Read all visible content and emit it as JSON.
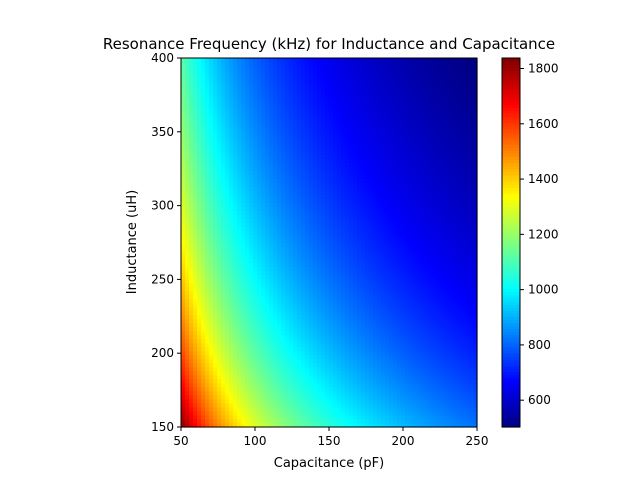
{
  "chart_data": {
    "type": "heatmap",
    "title": "Resonance Frequency (kHz) for Inductance and Capacitance",
    "xlabel": "Capacitance (pF)",
    "ylabel": "Inductance (uH)",
    "xlim": [
      50,
      250
    ],
    "ylim": [
      150,
      400
    ],
    "xticks": [
      50,
      100,
      150,
      200,
      250
    ],
    "yticks": [
      150,
      200,
      250,
      300,
      350,
      400
    ],
    "value_function": "f = 1 / (2*pi*sqrt(L*C))",
    "value_range": [
      503,
      1838
    ],
    "colormap": "jet",
    "grid": false,
    "colorbar": {
      "placement": "right",
      "range": [
        503,
        1838
      ],
      "ticks": [
        600,
        800,
        1000,
        1200,
        1400,
        1600,
        1800
      ],
      "tick_labels": [
        "600",
        "800",
        "1000",
        "1200",
        "1400",
        "1600",
        "1800"
      ]
    },
    "x_tick_labels": [
      "50",
      "100",
      "150",
      "200",
      "250"
    ],
    "y_tick_labels": [
      "150",
      "200",
      "250",
      "300",
      "350",
      "400"
    ]
  }
}
